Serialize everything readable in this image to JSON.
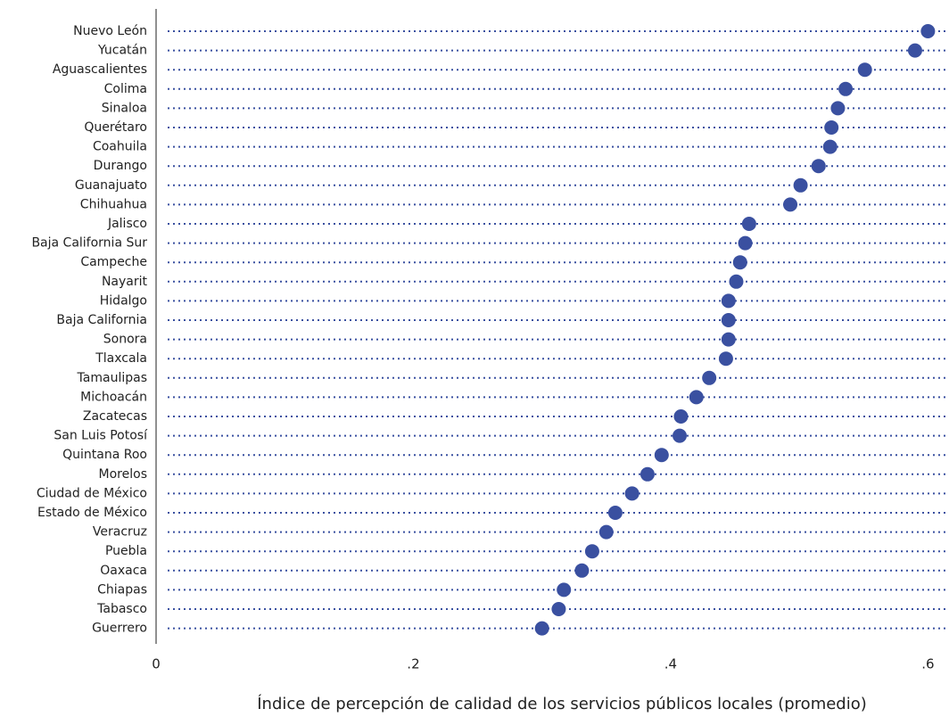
{
  "chart_data": {
    "type": "dot",
    "x_label": "Índice de percepción de calidad de los servicios públicos locales (promedio)",
    "categories": [
      "Nuevo León",
      "Yucatán",
      "Aguascalientes",
      "Colima",
      "Sinaloa",
      "Querétaro",
      "Coahuila",
      "Durango",
      "Guanajuato",
      "Chihuahua",
      "Jalisco",
      "Baja California Sur",
      "Campeche",
      "Nayarit",
      "Hidalgo",
      "Baja California",
      "Sonora",
      "Tlaxcala",
      "Tamaulipas",
      "Michoacán",
      "Zacatecas",
      "San Luis Potosí",
      "Quintana Roo",
      "Morelos",
      "Ciudad de México",
      "Estado de México",
      "Veracruz",
      "Puebla",
      "Oaxaca",
      "Chiapas",
      "Tabasco",
      "Guerrero"
    ],
    "values": [
      0.6,
      0.59,
      0.551,
      0.536,
      0.53,
      0.525,
      0.524,
      0.515,
      0.501,
      0.493,
      0.461,
      0.458,
      0.454,
      0.451,
      0.445,
      0.445,
      0.445,
      0.443,
      0.43,
      0.42,
      0.408,
      0.407,
      0.393,
      0.382,
      0.37,
      0.357,
      0.35,
      0.339,
      0.331,
      0.317,
      0.313,
      0.3
    ],
    "color": "#3a50a0",
    "xlim": [
      0,
      0.615
    ],
    "xticks": [
      0,
      {
        "value": 0.2,
        "label": ".2"
      },
      {
        "value": 0.4,
        "label": ".4"
      },
      {
        "value": 0.6,
        "label": ".6"
      }
    ]
  }
}
